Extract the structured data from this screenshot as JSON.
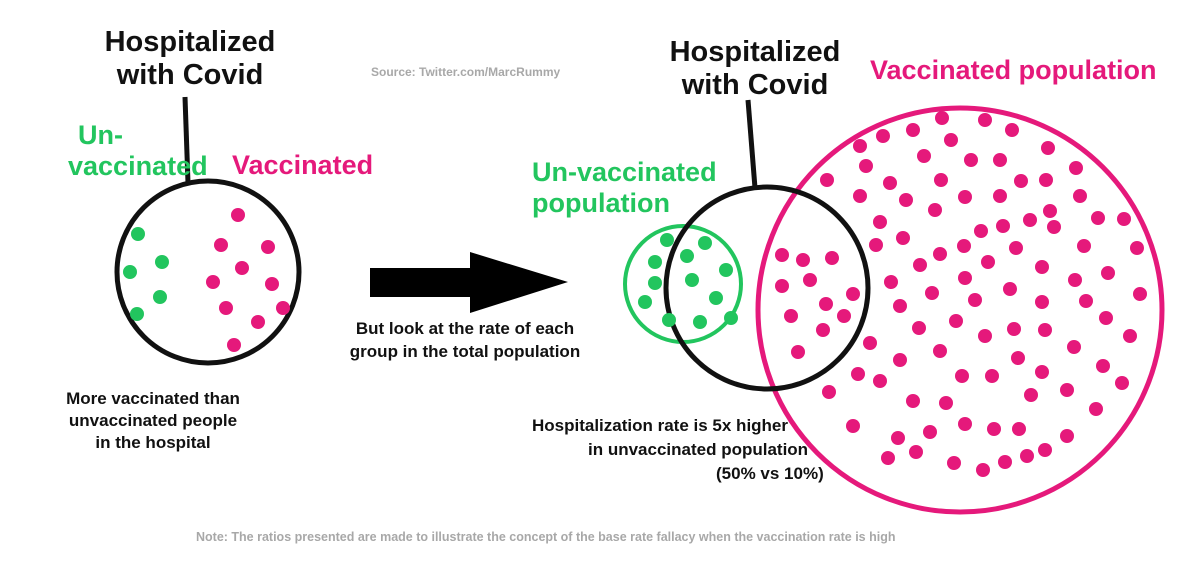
{
  "source": "Source:  Twitter.com/MarcRummy",
  "left": {
    "hospital_label_line1": "Hospitalized",
    "hospital_label_line2": "with Covid",
    "unvaccinated_line1": "Un-",
    "unvaccinated_line2": "vaccinated",
    "vaccinated": "Vaccinated",
    "caption_line1": "More vaccinated than",
    "caption_line2": "unvaccinated people",
    "caption_line3": "in the hospital",
    "green_dot_count": 5,
    "pink_dot_count": 10
  },
  "middle": {
    "arrow_text_line1": "But look at the rate of each",
    "arrow_text_line2": "group in the total population"
  },
  "right": {
    "hospital_label_line1": "Hospitalized",
    "hospital_label_line2": "with Covid",
    "unvaccinated_line1": "Un-vaccinated",
    "unvaccinated_line2": "population",
    "vaccinated_population": "Vaccinated population",
    "rate_line1": "Hospitalization rate is 5x higher",
    "rate_line2": "in unvaccinated population",
    "rate_line3": "(50% vs 10%)"
  },
  "note": "Note:  The ratios presented are made to illustrate the concept of the base rate fallacy when the vaccination rate is high",
  "colors": {
    "green": "#22c55e",
    "pink": "#e5197b",
    "black": "#111111"
  }
}
